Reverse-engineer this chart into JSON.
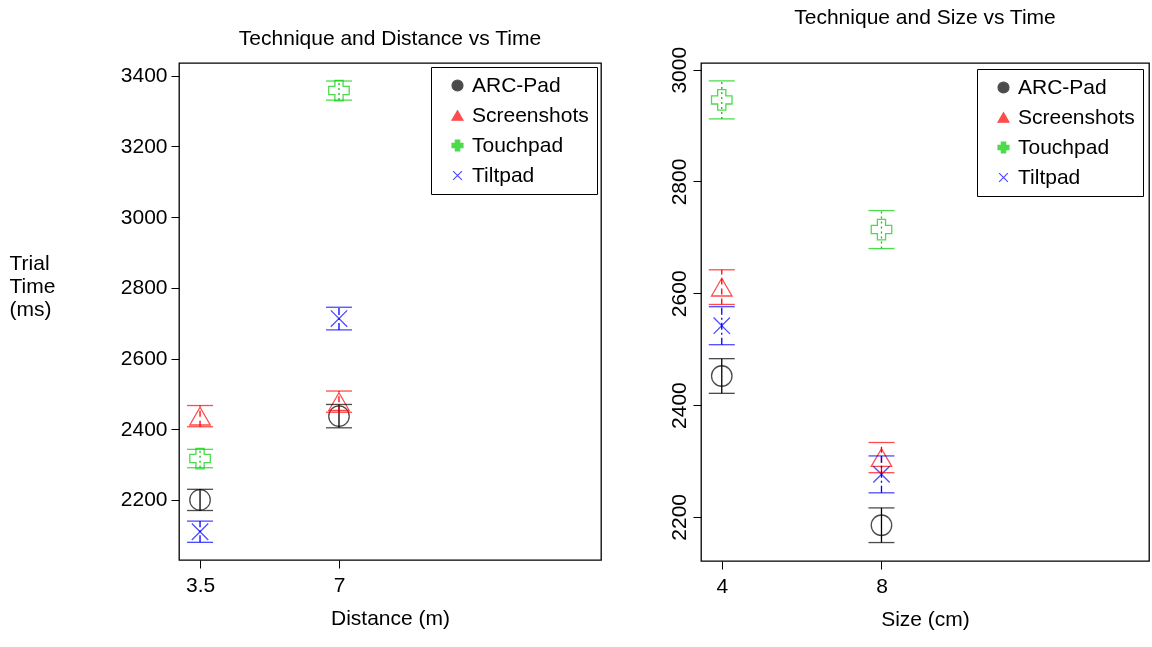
{
  "chart_data": [
    {
      "type": "scatter",
      "title": "Technique and Distance vs Time",
      "xlabel": "Distance (m)",
      "ylabel": "Trial Time (ms)",
      "x": [
        3.5,
        7
      ],
      "xlim": [
        2.97,
        13.6
      ],
      "xticks": [
        3.5,
        7
      ],
      "ylim": [
        2030,
        3436
      ],
      "yticks": [
        2200,
        2400,
        2600,
        2800,
        3000,
        3200,
        3400
      ],
      "grid": false,
      "legend": "top right",
      "series": [
        {
          "name": "ARC-Pad",
          "color": "#000000",
          "marker": "circle",
          "line_style": "solid",
          "values": [
            2200,
            2437
          ],
          "errors": [
            30,
            33
          ]
        },
        {
          "name": "Screenshots",
          "color": "#ff0000",
          "marker": "triangle",
          "line_style": "dashed",
          "values": [
            2437,
            2478
          ],
          "errors": [
            30,
            30
          ]
        },
        {
          "name": "Touchpad",
          "color": "#00cd00",
          "marker": "cross",
          "line_style": "dotted",
          "values": [
            2317,
            3358
          ],
          "errors": [
            26,
            27
          ]
        },
        {
          "name": "Tiltpad",
          "color": "#0000ff",
          "marker": "x",
          "line_style": "dashdot",
          "values": [
            2110,
            2713
          ],
          "errors": [
            30,
            32
          ]
        }
      ]
    },
    {
      "type": "scatter",
      "title": "Technique and Size vs Time",
      "xlabel": "Size (cm)",
      "x": [
        4,
        8
      ],
      "xlim": [
        3.48,
        14.7
      ],
      "xticks": [
        4,
        8
      ],
      "ylim": [
        2121,
        3012
      ],
      "yticks": [
        2200,
        2400,
        2600,
        2800,
        3000
      ],
      "grid": false,
      "legend": "top right",
      "series": [
        {
          "name": "ARC-Pad",
          "color": "#000000",
          "marker": "circle",
          "line_style": "solid",
          "values": [
            2452,
            2185
          ],
          "errors": [
            31,
            31
          ]
        },
        {
          "name": "Screenshots",
          "color": "#ff0000",
          "marker": "triangle",
          "line_style": "dashed",
          "values": [
            2611,
            2306
          ],
          "errors": [
            31,
            27
          ]
        },
        {
          "name": "Touchpad",
          "color": "#00cd00",
          "marker": "cross",
          "line_style": "dotted",
          "values": [
            2946,
            2714
          ],
          "errors": [
            34,
            34
          ]
        },
        {
          "name": "Tiltpad",
          "color": "#0000ff",
          "marker": "x",
          "line_style": "dashdot",
          "values": [
            2542,
            2276
          ],
          "errors": [
            34,
            33
          ]
        }
      ]
    }
  ]
}
